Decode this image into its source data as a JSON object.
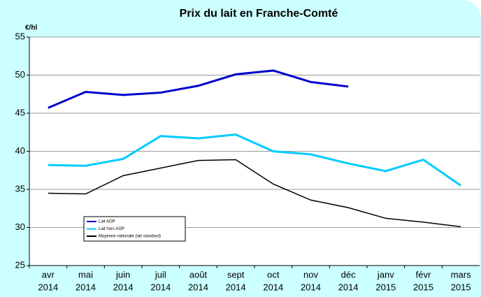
{
  "chart_data": {
    "type": "line",
    "title": "Prix du lait en Franche-Comté",
    "y_label": "€/hl",
    "categories": [
      [
        "avr",
        "2014"
      ],
      [
        "mai",
        "2014"
      ],
      [
        "juin",
        "2014"
      ],
      [
        "juil",
        "2014"
      ],
      [
        "août",
        "2014"
      ],
      [
        "sept",
        "2014"
      ],
      [
        "oct",
        "2014"
      ],
      [
        "nov",
        "2014"
      ],
      [
        "déc",
        "2014"
      ],
      [
        "janv",
        "2015"
      ],
      [
        "févr",
        "2015"
      ],
      [
        "mars",
        "2015"
      ]
    ],
    "series": [
      {
        "name": "Lait AOP",
        "color": "#0000cc",
        "values": [
          45.7,
          47.8,
          47.4,
          47.7,
          48.6,
          50.1,
          50.6,
          49.1,
          48.5,
          null,
          null,
          null
        ]
      },
      {
        "name": "Lait hors AOP",
        "color": "#00ccff",
        "values": [
          38.2,
          38.1,
          39.0,
          42.0,
          41.7,
          42.2,
          40.0,
          39.6,
          38.4,
          37.4,
          38.9,
          35.5
        ]
      },
      {
        "name": "Moyenne nationale (lait standard)",
        "color": "#000000",
        "values": [
          34.5,
          34.4,
          36.8,
          37.8,
          38.8,
          38.9,
          35.7,
          33.6,
          32.6,
          31.2,
          30.7,
          30.1
        ]
      }
    ],
    "ylim": [
      25,
      55
    ],
    "yticks": [
      25,
      30,
      35,
      40,
      45,
      50,
      55
    ],
    "grid": true
  }
}
